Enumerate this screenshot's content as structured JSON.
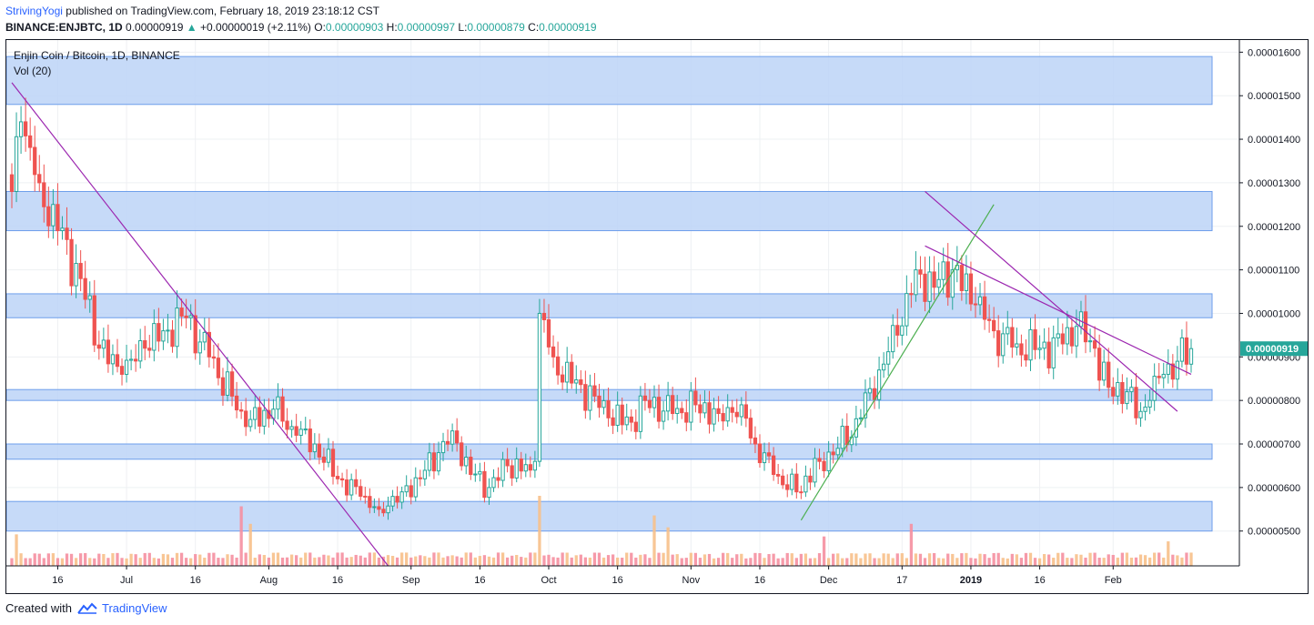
{
  "header": {
    "user": "StrivingYogi",
    "published": "published on TradingView.com, February 18, 2019 23:18:12 CST",
    "symbol": "BINANCE:ENJBTC, 1D",
    "last": "0.00000919",
    "change": "+0.00000019 (+2.11%)",
    "o_label": "O:",
    "o": "0.00000903",
    "h_label": "H:",
    "h": "0.00000997",
    "l_label": "L:",
    "l": "0.00000879",
    "c_label": "C:",
    "c": "0.00000919"
  },
  "legend": {
    "title": "Enjin Coin / Bitcoin, 1D, BINANCE",
    "indicator": "Vol (20)"
  },
  "footer": {
    "created": "Created with",
    "brand": "TradingView",
    "logo_icon": "tradingview-logo-icon"
  },
  "colors": {
    "up": "#26a69a",
    "down": "#ef5350",
    "vol_up": "#f7c08a",
    "vol_down": "#f58fa0",
    "zone_fill": "#bcd4f7",
    "zone_stroke": "#6d9eeb",
    "trendline": "#9c27b0",
    "trendline_up": "#4caf50",
    "price_badge": "#26a69a"
  },
  "chart_data": {
    "type": "candlestick",
    "title": "Enjin Coin / Bitcoin, 1D, BINANCE",
    "ylim": [
      4.2e-06,
      1.63e-05
    ],
    "y_ticks": [
      "0.00000500",
      "0.00000600",
      "0.00000700",
      "0.00000800",
      "0.00000900",
      "0.00001000",
      "0.00001100",
      "0.00001200",
      "0.00001300",
      "0.00001400",
      "0.00001500",
      "0.00001600"
    ],
    "y_tick_values": [
      5e-06,
      6e-06,
      7e-06,
      8e-06,
      9e-06,
      1e-05,
      1.1e-05,
      1.2e-05,
      1.3e-05,
      1.4e-05,
      1.5e-05,
      1.6e-05
    ],
    "x_ticks": [
      {
        "label": "16",
        "date": "2018-06-16",
        "bold": false
      },
      {
        "label": "Jul",
        "date": "2018-07-01",
        "bold": false
      },
      {
        "label": "16",
        "date": "2018-07-16",
        "bold": false
      },
      {
        "label": "Aug",
        "date": "2018-08-01",
        "bold": false
      },
      {
        "label": "16",
        "date": "2018-08-16",
        "bold": false
      },
      {
        "label": "Sep",
        "date": "2018-09-01",
        "bold": false
      },
      {
        "label": "16",
        "date": "2018-09-16",
        "bold": false
      },
      {
        "label": "Oct",
        "date": "2018-10-01",
        "bold": false
      },
      {
        "label": "16",
        "date": "2018-10-16",
        "bold": false
      },
      {
        "label": "Nov",
        "date": "2018-11-01",
        "bold": false
      },
      {
        "label": "16",
        "date": "2018-11-16",
        "bold": false
      },
      {
        "label": "Dec",
        "date": "2018-12-01",
        "bold": false
      },
      {
        "label": "17",
        "date": "2018-12-17",
        "bold": false
      },
      {
        "label": "2019",
        "date": "2019-01-01",
        "bold": true
      },
      {
        "label": "16",
        "date": "2019-01-16",
        "bold": false
      },
      {
        "label": "Feb",
        "date": "2019-02-01",
        "bold": false
      }
    ],
    "first_date": "2018-06-06",
    "last_date": "2019-02-18",
    "last_price_label": "0.00000919",
    "last_price": 9.19e-06,
    "zones": [
      {
        "low": 1.48e-05,
        "high": 1.59e-05
      },
      {
        "low": 1.19e-05,
        "high": 1.28e-05
      },
      {
        "low": 9.9e-06,
        "high": 1.045e-05
      },
      {
        "low": 8e-06,
        "high": 8.25e-06
      },
      {
        "low": 6.65e-06,
        "high": 7e-06
      },
      {
        "low": 5e-06,
        "high": 5.68e-06
      }
    ],
    "trendlines": [
      {
        "from": [
          "2018-06-06",
          1.53e-05
        ],
        "to": [
          "2018-08-27",
          4.2e-06
        ],
        "color": "purple"
      },
      {
        "from": [
          "2018-11-25",
          5.25e-06
        ],
        "to": [
          "2019-01-06",
          1.25e-05
        ],
        "color": "green"
      },
      {
        "from": [
          "2018-12-22",
          1.28e-05
        ],
        "to": [
          "2019-02-15",
          7.75e-06
        ],
        "color": "purple"
      },
      {
        "from": [
          "2018-12-22",
          1.155e-05
        ],
        "to": [
          "2019-02-18",
          8.6e-06
        ],
        "color": "purple"
      }
    ],
    "key_points": [
      {
        "date": "2018-06-06",
        "close": 1.28e-05
      },
      {
        "date": "2018-06-08",
        "close": 1.44e-05
      },
      {
        "date": "2018-06-12",
        "close": 1.3e-05
      },
      {
        "date": "2018-06-16",
        "close": 1.19e-05
      },
      {
        "date": "2018-06-21",
        "close": 1.08e-05
      },
      {
        "date": "2018-06-25",
        "close": 9.2e-06
      },
      {
        "date": "2018-06-30",
        "close": 8.6e-06
      },
      {
        "date": "2018-07-05",
        "close": 9.2e-06
      },
      {
        "date": "2018-07-09",
        "close": 9.6e-06
      },
      {
        "date": "2018-07-14",
        "close": 9.9e-06
      },
      {
        "date": "2018-07-19",
        "close": 9e-06
      },
      {
        "date": "2018-07-24",
        "close": 8.1e-06
      },
      {
        "date": "2018-07-27",
        "close": 7.4e-06
      },
      {
        "date": "2018-08-02",
        "close": 7.8e-06
      },
      {
        "date": "2018-08-07",
        "close": 7.2e-06
      },
      {
        "date": "2018-08-11",
        "close": 7e-06
      },
      {
        "date": "2018-08-16",
        "close": 6.2e-06
      },
      {
        "date": "2018-08-21",
        "close": 5.8e-06
      },
      {
        "date": "2018-08-25",
        "close": 5.5e-06
      },
      {
        "date": "2018-08-30",
        "close": 5.9e-06
      },
      {
        "date": "2018-09-03",
        "close": 6.2e-06
      },
      {
        "date": "2018-09-07",
        "close": 6.8e-06
      },
      {
        "date": "2018-09-10",
        "close": 7.3e-06
      },
      {
        "date": "2018-09-14",
        "close": 6.3e-06
      },
      {
        "date": "2018-09-18",
        "close": 6e-06
      },
      {
        "date": "2018-09-22",
        "close": 6.5e-06
      },
      {
        "date": "2018-09-27",
        "close": 6.4e-06
      },
      {
        "date": "2018-09-28",
        "close": 6.6e-06
      },
      {
        "date": "2018-09-29",
        "close": 1e-05
      },
      {
        "date": "2018-10-02",
        "close": 9e-06
      },
      {
        "date": "2018-10-06",
        "close": 8.4e-06
      },
      {
        "date": "2018-10-11",
        "close": 8.1e-06
      },
      {
        "date": "2018-10-14",
        "close": 7.6e-06
      },
      {
        "date": "2018-10-19",
        "close": 7.5e-06
      },
      {
        "date": "2018-10-22",
        "close": 8e-06
      },
      {
        "date": "2018-10-28",
        "close": 7.7e-06
      },
      {
        "date": "2018-11-02",
        "close": 7.9e-06
      },
      {
        "date": "2018-11-07",
        "close": 7.7e-06
      },
      {
        "date": "2018-11-12",
        "close": 7.9e-06
      },
      {
        "date": "2018-11-15",
        "close": 7e-06
      },
      {
        "date": "2018-11-19",
        "close": 6.3e-06
      },
      {
        "date": "2018-11-24",
        "close": 5.9e-06
      },
      {
        "date": "2018-11-29",
        "close": 6.6e-06
      },
      {
        "date": "2018-12-03",
        "close": 6.9e-06
      },
      {
        "date": "2018-12-08",
        "close": 7.6e-06
      },
      {
        "date": "2018-12-12",
        "close": 8.7e-06
      },
      {
        "date": "2018-12-16",
        "close": 9.5e-06
      },
      {
        "date": "2018-12-20",
        "close": 1.1e-05
      },
      {
        "date": "2018-12-24",
        "close": 1.06e-05
      },
      {
        "date": "2018-12-28",
        "close": 1.1e-05
      },
      {
        "date": "2019-01-02",
        "close": 1.02e-05
      },
      {
        "date": "2019-01-06",
        "close": 9.6e-06
      },
      {
        "date": "2019-01-11",
        "close": 9.3e-06
      },
      {
        "date": "2019-01-16",
        "close": 9.2e-06
      },
      {
        "date": "2019-01-21",
        "close": 9.3e-06
      },
      {
        "date": "2019-01-24",
        "close": 9.7e-06
      },
      {
        "date": "2019-01-28",
        "close": 9.2e-06
      },
      {
        "date": "2019-01-31",
        "close": 8.3e-06
      },
      {
        "date": "2019-02-04",
        "close": 8.2e-06
      },
      {
        "date": "2019-02-06",
        "close": 7.6e-06
      },
      {
        "date": "2019-02-09",
        "close": 8e-06
      },
      {
        "date": "2019-02-12",
        "close": 8.6e-06
      },
      {
        "date": "2019-02-15",
        "close": 8.9e-06
      },
      {
        "date": "2019-02-18",
        "close": 9.19e-06
      }
    ],
    "volume_spikes": [
      {
        "date": "2018-06-07",
        "value": 0.45
      },
      {
        "date": "2018-07-26",
        "value": 0.85
      },
      {
        "date": "2018-07-28",
        "value": 0.6
      },
      {
        "date": "2018-09-29",
        "value": 1.0
      },
      {
        "date": "2018-10-24",
        "value": 0.72
      },
      {
        "date": "2018-10-27",
        "value": 0.55
      },
      {
        "date": "2018-11-30",
        "value": 0.42
      },
      {
        "date": "2018-12-19",
        "value": 0.6
      },
      {
        "date": "2019-02-13",
        "value": 0.35
      }
    ]
  }
}
